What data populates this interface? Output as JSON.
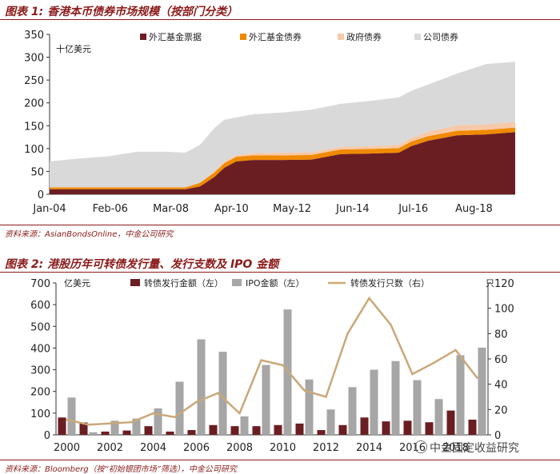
{
  "chart1": {
    "title": "图表 1: 香港本币债券市场规模（按部门分类）",
    "unit": "十亿美元",
    "source": "资料来源：AsianBondsOnline，中金公司研究",
    "colors": {
      "fx": "#6b1e22",
      "fxbond": "#f08a00",
      "gov": "#f7c9a8",
      "corp": "#d9d9d9"
    },
    "chart_data": {
      "type": "area",
      "stacked": true,
      "x_tick_labels": [
        "Jan-04",
        "Feb-06",
        "Mar-08",
        "Apr-10",
        "May-12",
        "Jun-14",
        "Jul-16",
        "Aug-18"
      ],
      "ylim": [
        0,
        350
      ],
      "yticks": [
        0,
        50,
        100,
        150,
        200,
        250,
        300,
        350
      ],
      "legend": [
        "外汇基金票据",
        "外汇基金债券",
        "政府债券",
        "公司债券"
      ],
      "x": [
        "2004-01",
        "2005-01",
        "2006-01",
        "2007-01",
        "2008-01",
        "2008-09",
        "2009-03",
        "2009-09",
        "2010-01",
        "2010-06",
        "2011-01",
        "2012-01",
        "2013-01",
        "2014-01",
        "2015-01",
        "2016-01",
        "2016-06",
        "2017-01",
        "2018-01",
        "2019-01",
        "2020-01"
      ],
      "series": [
        {
          "name": "外汇基金票据",
          "values": [
            11,
            11,
            11,
            11,
            11,
            11,
            17,
            38,
            58,
            72,
            75,
            75,
            76,
            88,
            89,
            91,
            105,
            117,
            129,
            131,
            136
          ]
        },
        {
          "name": "外汇基金债券",
          "values": [
            4,
            4,
            4,
            4,
            4,
            4,
            8,
            10,
            10,
            10,
            10,
            10,
            10,
            10,
            10,
            10,
            10,
            10,
            10,
            10,
            10
          ]
        },
        {
          "name": "政府债券",
          "values": [
            0,
            0,
            0,
            0,
            0,
            0,
            0,
            2,
            3,
            4,
            5,
            6,
            6,
            6,
            6,
            7,
            8,
            10,
            12,
            12,
            12
          ]
        },
        {
          "name": "公司债券",
          "values": [
            57,
            63,
            68,
            78,
            78,
            76,
            83,
            95,
            92,
            82,
            85,
            88,
            93,
            94,
            99,
            104,
            103,
            103,
            113,
            132,
            132
          ]
        }
      ]
    }
  },
  "chart2": {
    "title": "图表 2: 港股历年可转债发行量、发行支数及 IPO 金额",
    "unit_left": "亿美元",
    "unit_right": "只",
    "source": "资料来源：Bloomberg（按“初始银团市场”筛选），中金公司研究",
    "watermark": "中金固定收益研究",
    "colors": {
      "cb": "#6b1e22",
      "ipo": "#a6a6a6",
      "count": "#c9a878"
    },
    "chart_data": {
      "type": "bar",
      "categories": [
        "2000",
        "2001",
        "2002",
        "2003",
        "2004",
        "2005",
        "2006",
        "2007",
        "2008",
        "2009",
        "2010",
        "2011",
        "2012",
        "2013",
        "2014",
        "2015",
        "2016",
        "2017",
        "2018",
        "2019"
      ],
      "x_tick_labels": [
        "2000",
        "2002",
        "2004",
        "2006",
        "2008",
        "2010",
        "2012",
        "2014",
        "2016",
        "2018"
      ],
      "ylim_left": [
        0,
        700
      ],
      "yticks_left": [
        0,
        100,
        200,
        300,
        400,
        500,
        600,
        700
      ],
      "ylim_right": [
        0,
        120
      ],
      "yticks_right": [
        0,
        20,
        40,
        60,
        80,
        100,
        120
      ],
      "series": [
        {
          "name": "转债发行金额（左）",
          "axis": "left",
          "type": "bar",
          "values": [
            80,
            57,
            15,
            20,
            40,
            15,
            22,
            45,
            40,
            40,
            45,
            52,
            22,
            45,
            80,
            62,
            65,
            58,
            112,
            70
          ]
        },
        {
          "name": "IPO金额（左）",
          "axis": "left",
          "type": "bar",
          "values": [
            172,
            12,
            65,
            75,
            122,
            245,
            440,
            383,
            85,
            322,
            578,
            255,
            117,
            220,
            300,
            340,
            252,
            165,
            367,
            402
          ]
        },
        {
          "name": "转债发行只数（右）",
          "axis": "right",
          "type": "line",
          "values": [
            12,
            8,
            9,
            10,
            17,
            14,
            26,
            33,
            17,
            59,
            55,
            35,
            30,
            80,
            108,
            87,
            48,
            57,
            67,
            45
          ]
        }
      ]
    }
  }
}
